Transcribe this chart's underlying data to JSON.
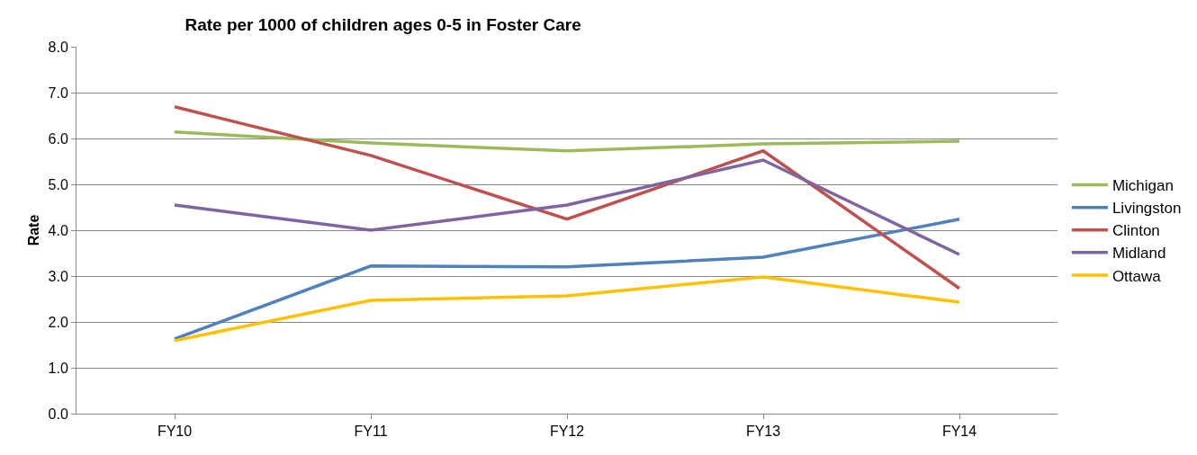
{
  "chart_data": {
    "type": "line",
    "title": "Rate per 1000 of children ages 0-5 in Foster Care",
    "ylabel": "Rate",
    "categories": [
      "FY10",
      "FY11",
      "FY12",
      "FY13",
      "FY14"
    ],
    "series": [
      {
        "name": "Michigan",
        "color": "#9bbb59",
        "values": [
          6.14,
          5.9,
          5.73,
          5.88,
          5.94
        ]
      },
      {
        "name": "Livingston",
        "color": "#4f81bd",
        "values": [
          1.63,
          3.22,
          3.2,
          3.41,
          4.24
        ]
      },
      {
        "name": "Clinton",
        "color": "#c0504d",
        "values": [
          6.69,
          5.63,
          4.24,
          5.73,
          2.73
        ]
      },
      {
        "name": "Midland",
        "color": "#8064a2",
        "values": [
          4.55,
          4.0,
          4.55,
          5.53,
          3.47
        ]
      },
      {
        "name": "Ottawa",
        "color": "#ffc000",
        "values": [
          1.59,
          2.47,
          2.57,
          2.98,
          2.43
        ]
      }
    ],
    "ylim": [
      0,
      8
    ],
    "yticks": [
      {
        "value": 0,
        "label": "0.0"
      },
      {
        "value": 1,
        "label": "1.0"
      },
      {
        "value": 2,
        "label": "2.0"
      },
      {
        "value": 3,
        "label": "3.0"
      },
      {
        "value": 4,
        "label": "4.0"
      },
      {
        "value": 5,
        "label": "5.0"
      },
      {
        "value": 6,
        "label": "6.0"
      },
      {
        "value": 7,
        "label": "7.0"
      },
      {
        "value": 8,
        "label": "8.0"
      }
    ],
    "grid": "y",
    "legend": "right",
    "marker": "none",
    "line_style": "solid"
  }
}
